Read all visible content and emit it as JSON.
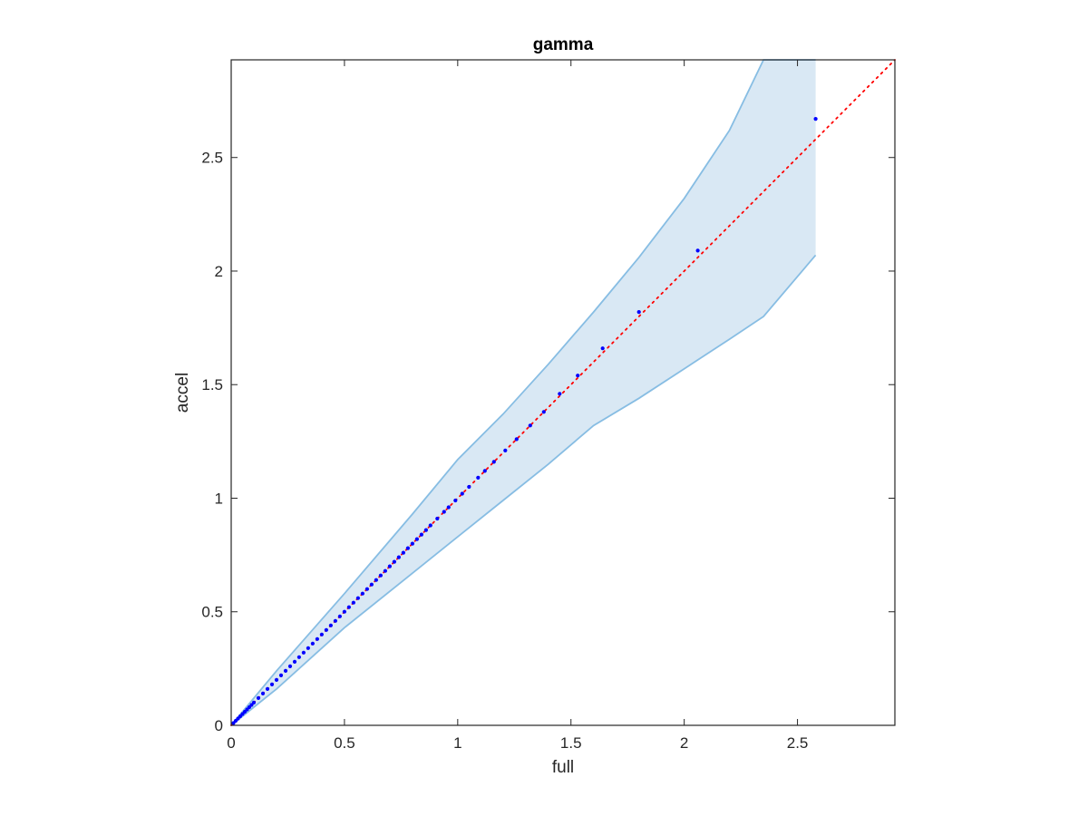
{
  "chart_data": {
    "type": "scatter",
    "title": "gamma",
    "xlabel": "full",
    "ylabel": "accel",
    "xlim": [
      0,
      2.93
    ],
    "ylim": [
      0,
      2.93
    ],
    "xticks": [
      0,
      0.5,
      1,
      1.5,
      2,
      2.5
    ],
    "yticks": [
      0,
      0.5,
      1,
      1.5,
      2,
      2.5
    ],
    "xtick_labels": [
      "0",
      "0.5",
      "1",
      "1.5",
      "2",
      "2.5"
    ],
    "ytick_labels": [
      "0",
      "0.5",
      "1",
      "1.5",
      "2",
      "2.5"
    ],
    "grid": false,
    "band": {
      "x": [
        0,
        0.2,
        0.5,
        0.8,
        1.0,
        1.2,
        1.4,
        1.6,
        1.8,
        2.0,
        2.2,
        2.35,
        2.58
      ],
      "upper": [
        0,
        0.24,
        0.58,
        0.93,
        1.17,
        1.37,
        1.59,
        1.82,
        2.06,
        2.32,
        2.62,
        2.93,
        2.93
      ],
      "lower": [
        0,
        0.16,
        0.43,
        0.67,
        0.83,
        0.99,
        1.15,
        1.32,
        1.44,
        1.57,
        1.7,
        1.8,
        2.07
      ],
      "fill_color": "#d9e8f4",
      "edge_color": "#87bde3"
    },
    "reference_line": {
      "x": [
        0,
        2.93
      ],
      "y": [
        0,
        2.93
      ],
      "color": "#ff0000",
      "style": "dotted"
    },
    "points": {
      "color": "#0000ff",
      "x": [
        0.01,
        0.02,
        0.03,
        0.04,
        0.05,
        0.06,
        0.07,
        0.08,
        0.09,
        0.1,
        0.12,
        0.14,
        0.16,
        0.18,
        0.2,
        0.22,
        0.24,
        0.26,
        0.28,
        0.3,
        0.32,
        0.34,
        0.36,
        0.38,
        0.4,
        0.42,
        0.44,
        0.46,
        0.48,
        0.5,
        0.52,
        0.54,
        0.56,
        0.58,
        0.6,
        0.62,
        0.64,
        0.66,
        0.68,
        0.7,
        0.72,
        0.74,
        0.76,
        0.78,
        0.8,
        0.82,
        0.84,
        0.86,
        0.88,
        0.91,
        0.94,
        0.96,
        0.99,
        1.02,
        1.05,
        1.09,
        1.12,
        1.16,
        1.21,
        1.26,
        1.32,
        1.38,
        1.45,
        1.53,
        1.64,
        1.8,
        2.06,
        2.58
      ],
      "y": [
        0.01,
        0.02,
        0.03,
        0.04,
        0.05,
        0.06,
        0.07,
        0.08,
        0.09,
        0.1,
        0.12,
        0.14,
        0.16,
        0.18,
        0.2,
        0.22,
        0.24,
        0.26,
        0.28,
        0.3,
        0.32,
        0.34,
        0.36,
        0.38,
        0.4,
        0.42,
        0.44,
        0.46,
        0.48,
        0.5,
        0.52,
        0.54,
        0.56,
        0.58,
        0.6,
        0.62,
        0.64,
        0.66,
        0.68,
        0.7,
        0.72,
        0.74,
        0.76,
        0.78,
        0.8,
        0.82,
        0.84,
        0.86,
        0.88,
        0.91,
        0.94,
        0.96,
        0.99,
        1.02,
        1.05,
        1.09,
        1.12,
        1.16,
        1.21,
        1.26,
        1.32,
        1.38,
        1.46,
        1.54,
        1.66,
        1.82,
        2.09,
        2.67
      ]
    }
  }
}
